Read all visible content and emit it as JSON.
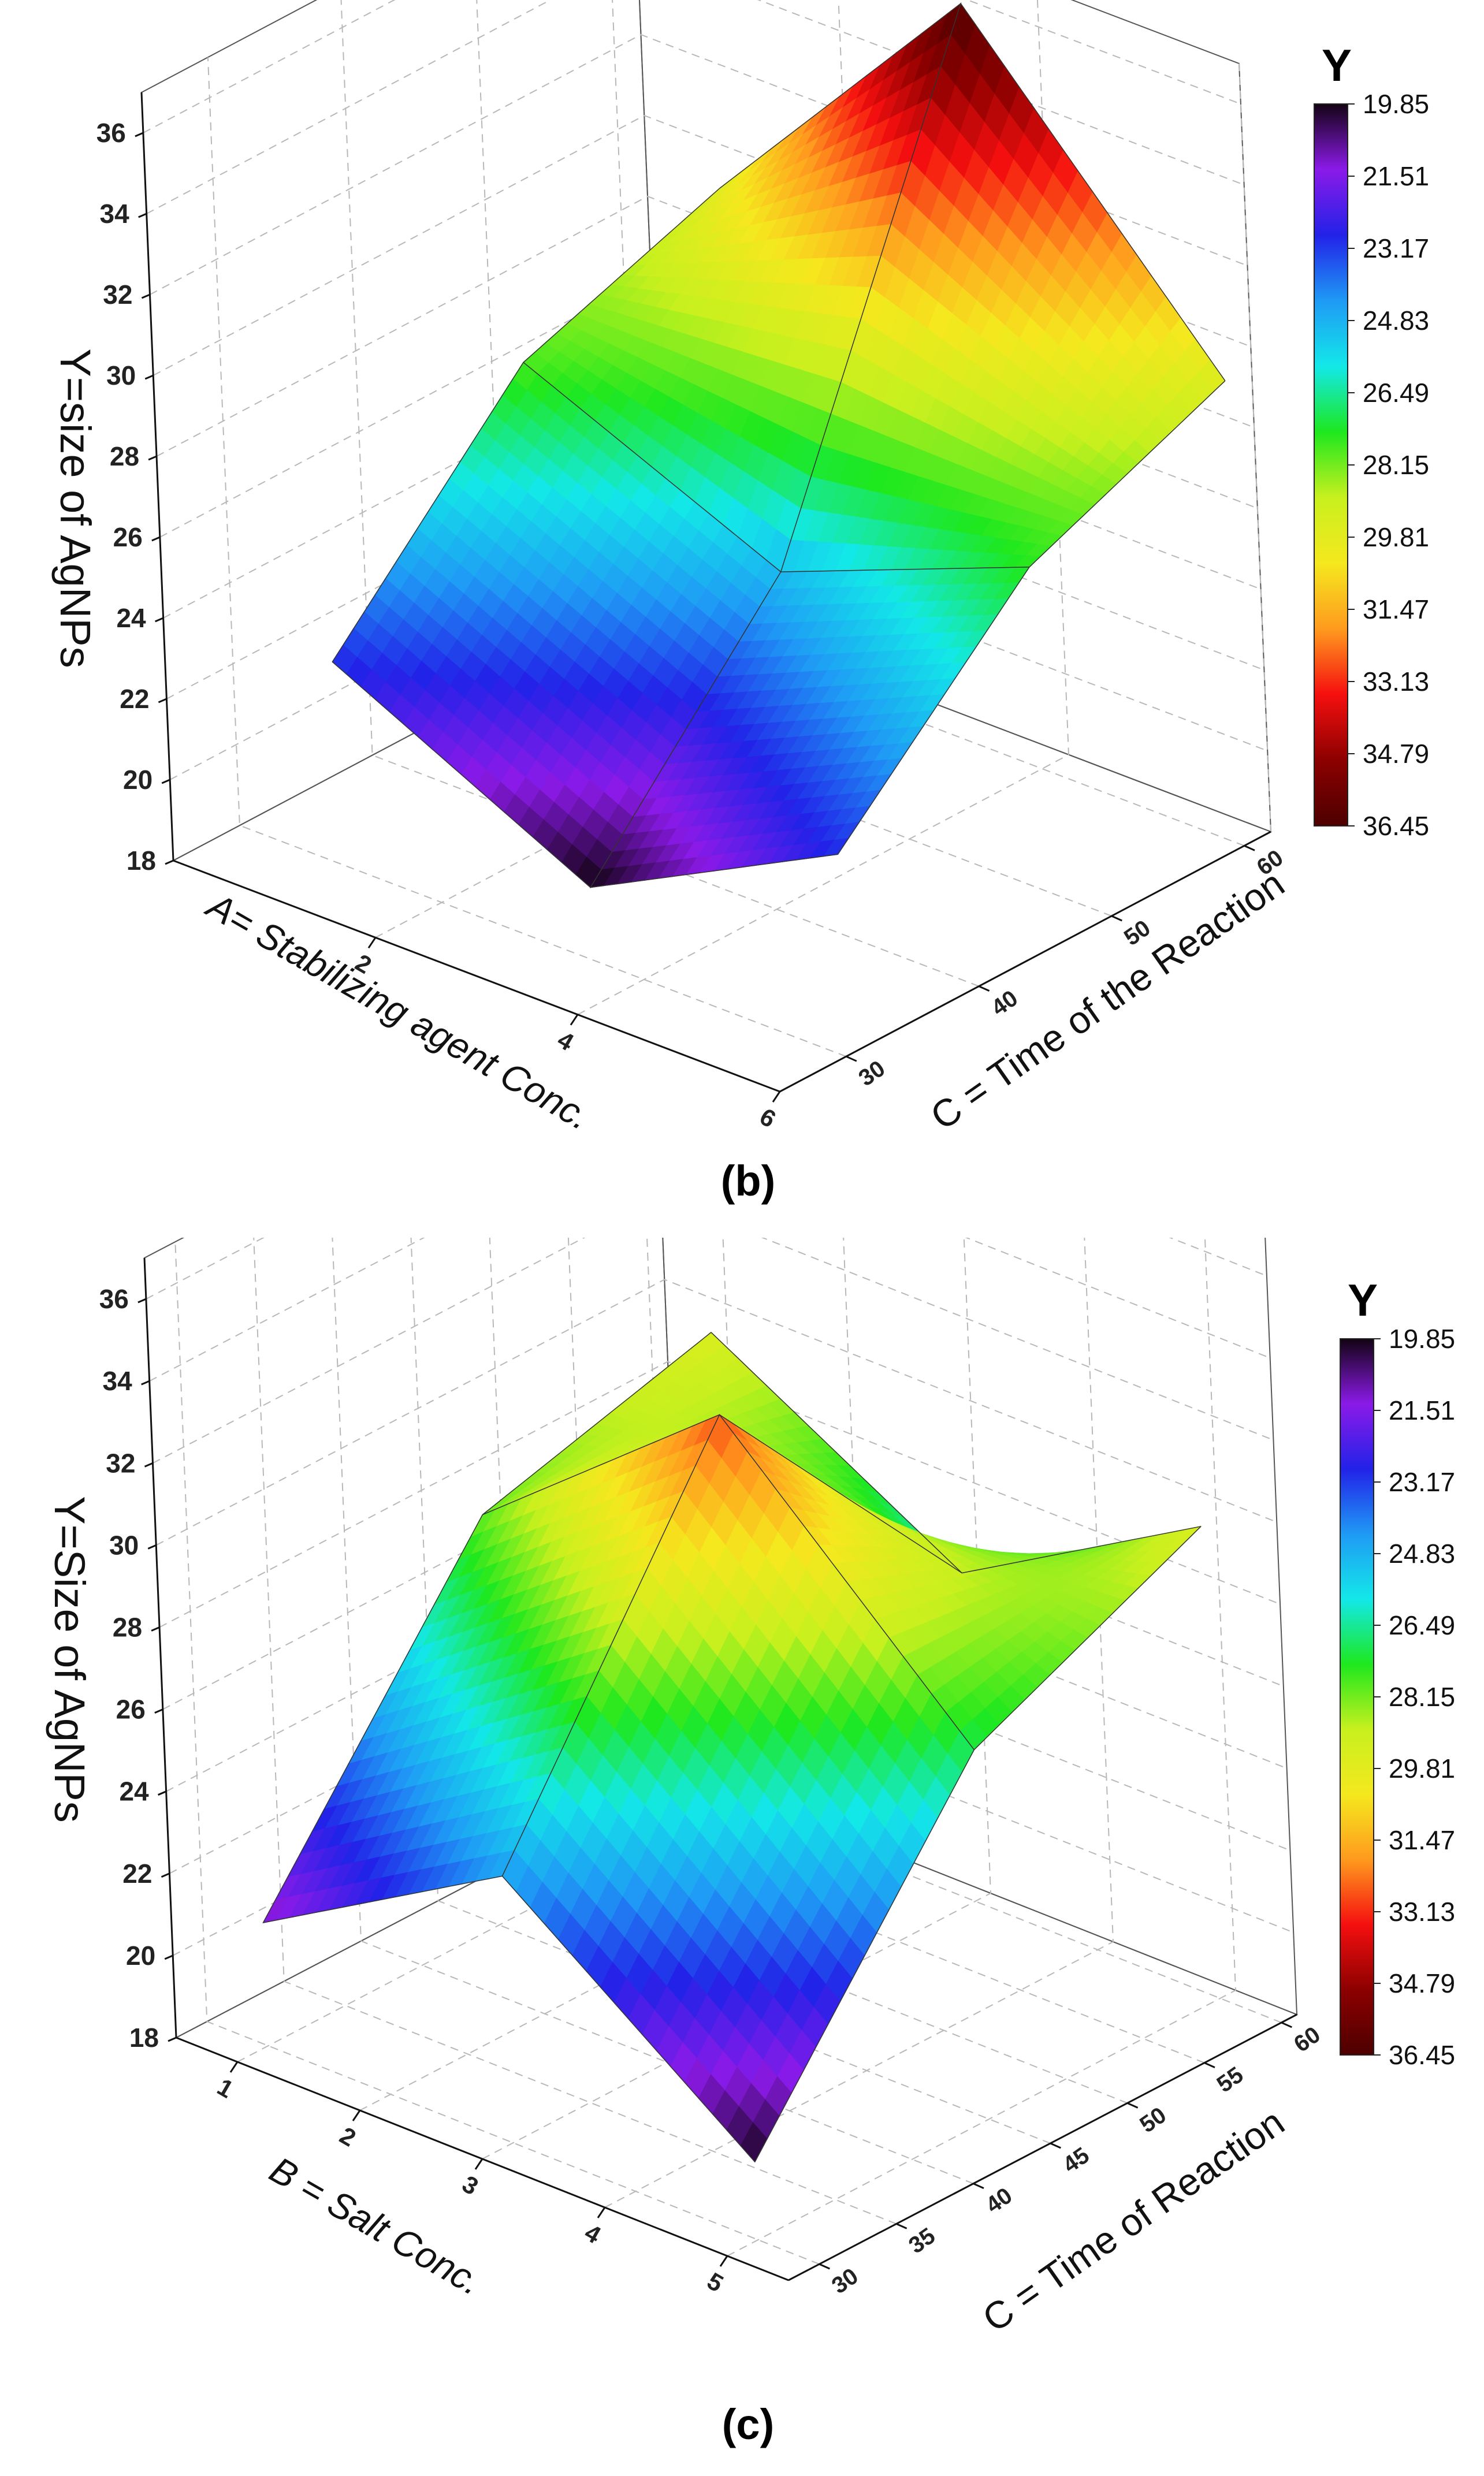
{
  "chart_data": [
    {
      "type": "surface3d",
      "panel_label": "(b)",
      "zlabel": "Y=size of AgNPs",
      "xlabel": "A= Stabilizing agent Conc.",
      "ylabel": "C = Time of the Reaction",
      "x_ticks": [
        "2",
        "4",
        "6"
      ],
      "y_ticks": [
        "30",
        "40",
        "50",
        "60"
      ],
      "z_ticks": [
        "18",
        "20",
        "22",
        "24",
        "26",
        "28",
        "30",
        "32",
        "34",
        "36"
      ],
      "x_range": [
        0,
        6
      ],
      "y_range": [
        25,
        62
      ],
      "z_range": [
        18,
        37
      ],
      "surface": {
        "x": [
          1,
          3.5,
          6
        ],
        "y": [
          30,
          45,
          60
        ],
        "z": [
          [
            23.0,
            27.8,
            29.5
          ],
          [
            19.8,
            25.0,
            36.45
          ],
          [
            23.0,
            27.5,
            29.5
          ]
        ]
      },
      "colorbar": {
        "title": "Y",
        "labels": [
          "19.85",
          "21.51",
          "23.17",
          "24.83",
          "26.49",
          "28.15",
          "29.81",
          "31.47",
          "33.13",
          "34.79",
          "36.45"
        ],
        "colors": [
          "#130313",
          "#8b1ae8",
          "#2222e8",
          "#1f9af5",
          "#13e8e8",
          "#1ee81e",
          "#c8f01e",
          "#f5e81e",
          "#ff9a1e",
          "#f50f0f",
          "#8c0000",
          "#4d0000"
        ]
      }
    },
    {
      "type": "surface3d",
      "panel_label": "(c)",
      "zlabel": "Y=Size of AgNPs",
      "xlabel": "B = Salt Conc.",
      "ylabel": "C = Time of Reaction",
      "x_ticks": [
        "1",
        "2",
        "3",
        "4",
        "5"
      ],
      "y_ticks": [
        "30",
        "35",
        "40",
        "45",
        "50",
        "55",
        "60"
      ],
      "z_ticks": [
        "18",
        "20",
        "22",
        "24",
        "26",
        "28",
        "30",
        "32",
        "34",
        "36"
      ],
      "x_range": [
        0.5,
        5.5
      ],
      "y_range": [
        28,
        61
      ],
      "z_range": [
        18,
        37
      ],
      "surface": {
        "x": [
          1,
          3,
          5
        ],
        "y": [
          30,
          45,
          60
        ],
        "z": [
          [
            21.0,
            28.0,
            29.5
          ],
          [
            24.5,
            32.8,
            26.0
          ],
          [
            19.9,
            27.0,
            29.5
          ]
        ]
      },
      "colorbar": {
        "title": "Y",
        "labels": [
          "19.85",
          "21.51",
          "23.17",
          "24.83",
          "26.49",
          "28.15",
          "29.81",
          "31.47",
          "33.13",
          "34.79",
          "36.45"
        ],
        "colors": [
          "#130313",
          "#8b1ae8",
          "#2222e8",
          "#1f9af5",
          "#13e8e8",
          "#1ee81e",
          "#c8f01e",
          "#f5e81e",
          "#ff9a1e",
          "#f50f0f",
          "#8c0000",
          "#4d0000"
        ]
      }
    }
  ]
}
